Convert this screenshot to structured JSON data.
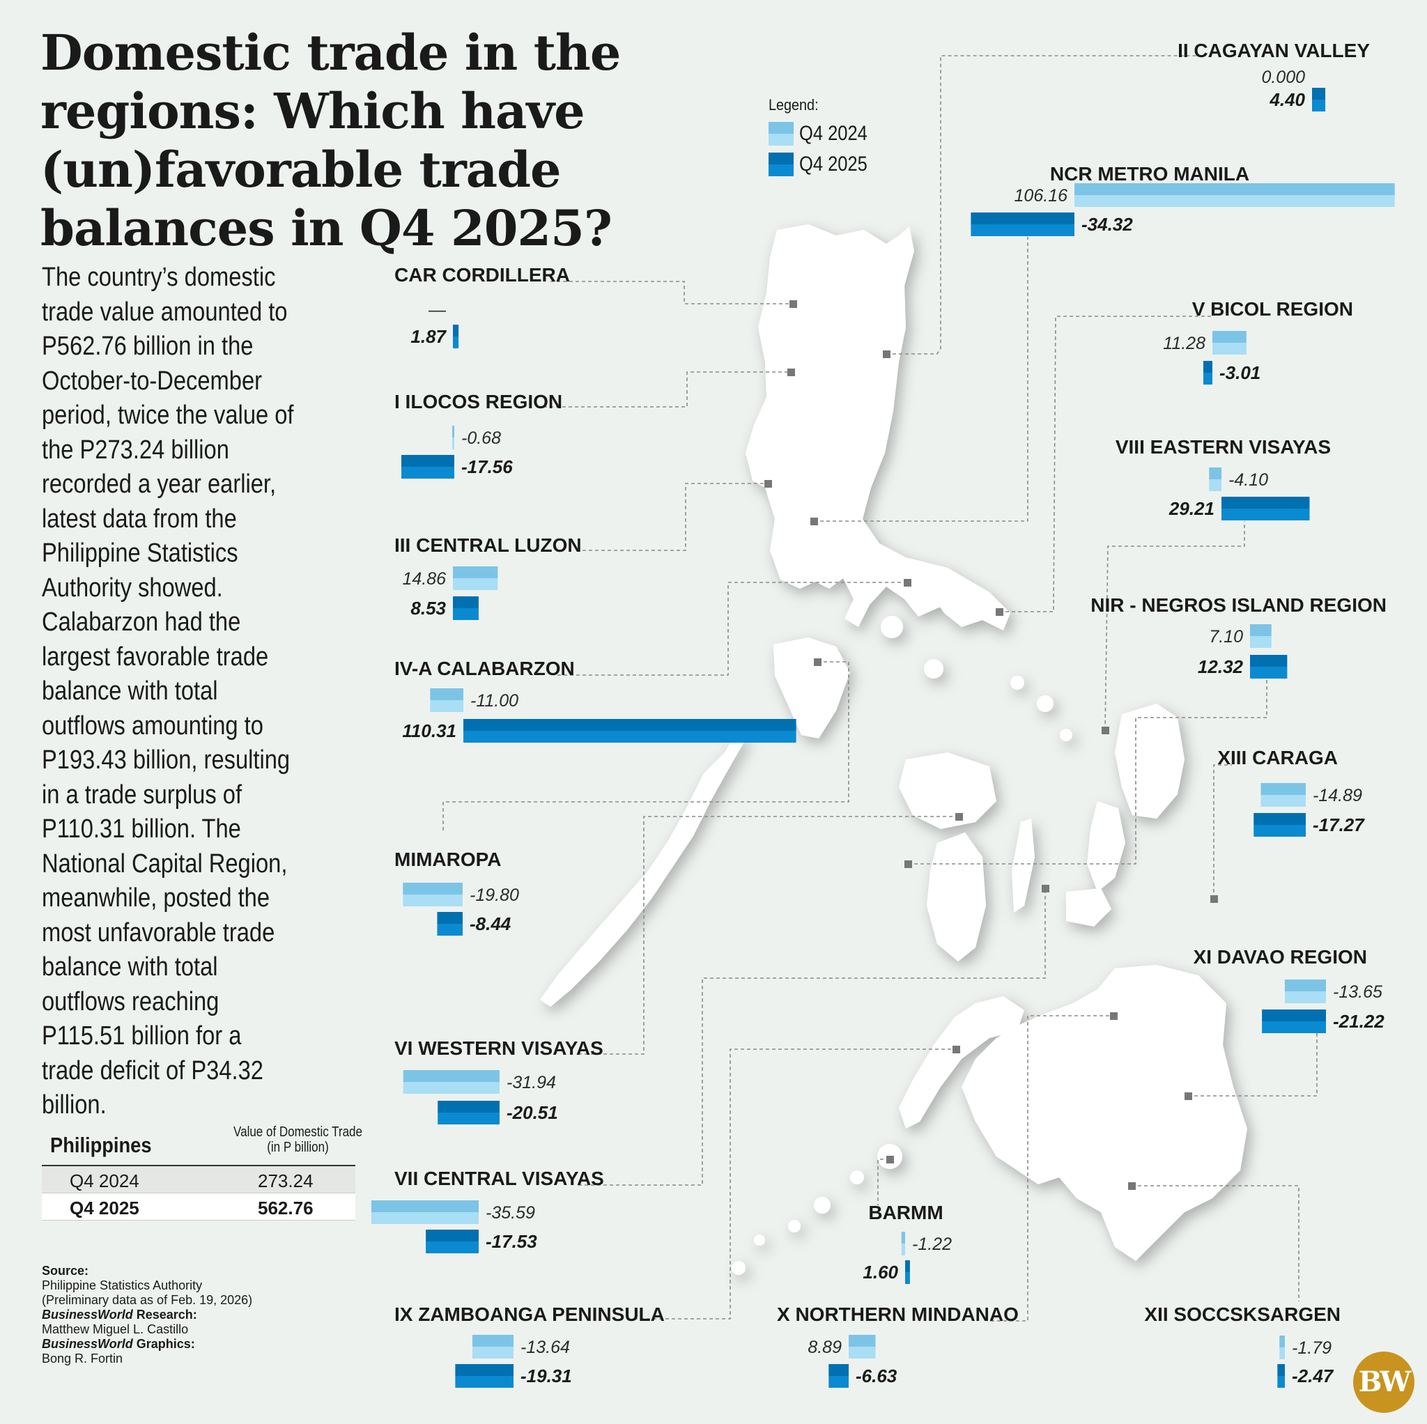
{
  "title": "Domestic trade in the regions: Which have (un)favorable trade balances in Q4 2025?",
  "intro": "The country’s domestic trade value amounted to P562.76 billion in the October-to-December period, twice the value of the P273.24 billion recorded a year earlier, latest data from the Philippine Statistics Authority showed. Calabarzon had the largest favorable trade balance with total outflows amounting to P193.43 billion, resulting in a trade surplus of P110.31 billion. The National Capital Region, meanwhile, posted the most unfavorable trade balance with total outflows reaching P115.51 billion for a trade deficit of P34.32 billion.",
  "legend": {
    "title": "Legend:",
    "q4_2024": "Q4 2024",
    "q4_2025": "Q4 2025"
  },
  "colors": {
    "q4_2024": "#8fd0ee",
    "q4_2025": "#0a86c9",
    "map_land": "#ffffff",
    "background": "#eef2ef",
    "marker": "#777777",
    "logo": "#c8941f"
  },
  "national_table": {
    "label": "Philippines",
    "header": [
      "Value of Domestic Trade",
      "(in P billion)"
    ],
    "rows": [
      {
        "period": "Q4 2024",
        "value": "273.24"
      },
      {
        "period": "Q4 2025",
        "value": "562.76"
      }
    ]
  },
  "credits": {
    "source_heading": "Source:",
    "source_name": "Philippine Statistics Authority",
    "source_note": "(Preliminary data as of Feb. 19, 2026)",
    "research_brand": "BusinessWorld",
    "research_heading": " Research:",
    "research_name": "Matthew Miguel L. Castillo",
    "graphics_brand": "BusinessWorld",
    "graphics_heading": " Graphics:",
    "graphics_name": "Bong R. Fortin"
  },
  "logo": "BW",
  "chart_data": {
    "type": "bar",
    "title": "Domestic trade in the regions: Which have (un)favorable trade balances in Q4 2025?",
    "series": [
      {
        "name": "Q4 2024"
      },
      {
        "name": "Q4 2025"
      }
    ],
    "regions": [
      {
        "name": "II CAGAYAN VALLEY",
        "q4_2024": 0,
        "q4_2024_label": "0.000",
        "q4_2025": 4.4,
        "q4_2025_label": "4.40"
      },
      {
        "name": "NCR METRO MANILA",
        "q4_2024": 106.16,
        "q4_2024_label": "106.16",
        "q4_2025": -34.32,
        "q4_2025_label": "-34.32"
      },
      {
        "name": "CAR CORDILLERA",
        "q4_2024": null,
        "q4_2024_label": "—",
        "q4_2025": 1.87,
        "q4_2025_label": "1.87"
      },
      {
        "name": "V BICOL REGION",
        "q4_2024": 11.28,
        "q4_2024_label": "11.28",
        "q4_2025": -3.01,
        "q4_2025_label": "-3.01"
      },
      {
        "name": "I ILOCOS REGION",
        "q4_2024": -0.68,
        "q4_2024_label": "-0.68",
        "q4_2025": -17.56,
        "q4_2025_label": "-17.56"
      },
      {
        "name": "VIII EASTERN VISAYAS",
        "q4_2024": -4.1,
        "q4_2024_label": "-4.10",
        "q4_2025": 29.21,
        "q4_2025_label": "29.21"
      },
      {
        "name": "III CENTRAL LUZON",
        "q4_2024": 14.86,
        "q4_2024_label": "14.86",
        "q4_2025": 8.53,
        "q4_2025_label": "8.53"
      },
      {
        "name": "NIR - NEGROS ISLAND REGION",
        "q4_2024": 7.1,
        "q4_2024_label": "7.10",
        "q4_2025": 12.32,
        "q4_2025_label": "12.32"
      },
      {
        "name": "IV-A CALABARZON",
        "q4_2024": -11.0,
        "q4_2024_label": "-11.00",
        "q4_2025": 110.31,
        "q4_2025_label": "110.31"
      },
      {
        "name": "XIII CARAGA",
        "q4_2024": -14.89,
        "q4_2024_label": "-14.89",
        "q4_2025": -17.27,
        "q4_2025_label": "-17.27"
      },
      {
        "name": "MIMAROPA",
        "q4_2024": -19.8,
        "q4_2024_label": "-19.80",
        "q4_2025": -8.44,
        "q4_2025_label": "-8.44"
      },
      {
        "name": "XI DAVAO REGION",
        "q4_2024": -13.65,
        "q4_2024_label": "-13.65",
        "q4_2025": -21.22,
        "q4_2025_label": "-21.22"
      },
      {
        "name": "VI WESTERN VISAYAS",
        "q4_2024": -31.94,
        "q4_2024_label": "-31.94",
        "q4_2025": -20.51,
        "q4_2025_label": "-20.51"
      },
      {
        "name": "VII CENTRAL VISAYAS",
        "q4_2024": -35.59,
        "q4_2024_label": "-35.59",
        "q4_2025": -17.53,
        "q4_2025_label": "-17.53"
      },
      {
        "name": "BARMM",
        "q4_2024": -1.22,
        "q4_2024_label": "-1.22",
        "q4_2025": 1.6,
        "q4_2025_label": "1.60"
      },
      {
        "name": "IX ZAMBOANGA PENINSULA",
        "q4_2024": -13.64,
        "q4_2024_label": "-13.64",
        "q4_2025": -19.31,
        "q4_2025_label": "-19.31"
      },
      {
        "name": "X NORTHERN MINDANAO",
        "q4_2024": 8.89,
        "q4_2024_label": "8.89",
        "q4_2025": -6.63,
        "q4_2025_label": "-6.63"
      },
      {
        "name": "XII SOCCSKSARGEN",
        "q4_2024": -1.79,
        "q4_2024_label": "-1.79",
        "q4_2025": -2.47,
        "q4_2025_label": "-2.47"
      }
    ]
  }
}
